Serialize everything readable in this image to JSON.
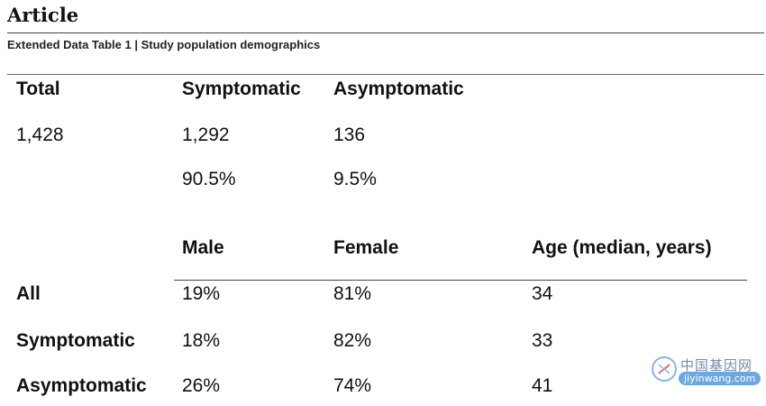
{
  "header": {
    "kicker": "Article",
    "caption": "Extended Data Table 1 | Study population demographics"
  },
  "table1": {
    "headers": [
      "Total",
      "Symptomatic",
      "Asymptomatic"
    ],
    "counts": [
      "1,428",
      "1,292",
      "136"
    ],
    "percents": [
      "90.5%",
      "9.5%"
    ]
  },
  "table2": {
    "headers": [
      "Male",
      "Female",
      "Age (median, years)"
    ],
    "rows": [
      {
        "label": "All",
        "male": "19%",
        "female": "81%",
        "age": "34"
      },
      {
        "label": "Symptomatic",
        "male": "18%",
        "female": "82%",
        "age": "33"
      },
      {
        "label": "Asymptomatic",
        "male": "26%",
        "female": "74%",
        "age": "41"
      }
    ]
  },
  "watermark": {
    "site_cn": "中国基因网",
    "site_url": "jiyinwang.com"
  }
}
